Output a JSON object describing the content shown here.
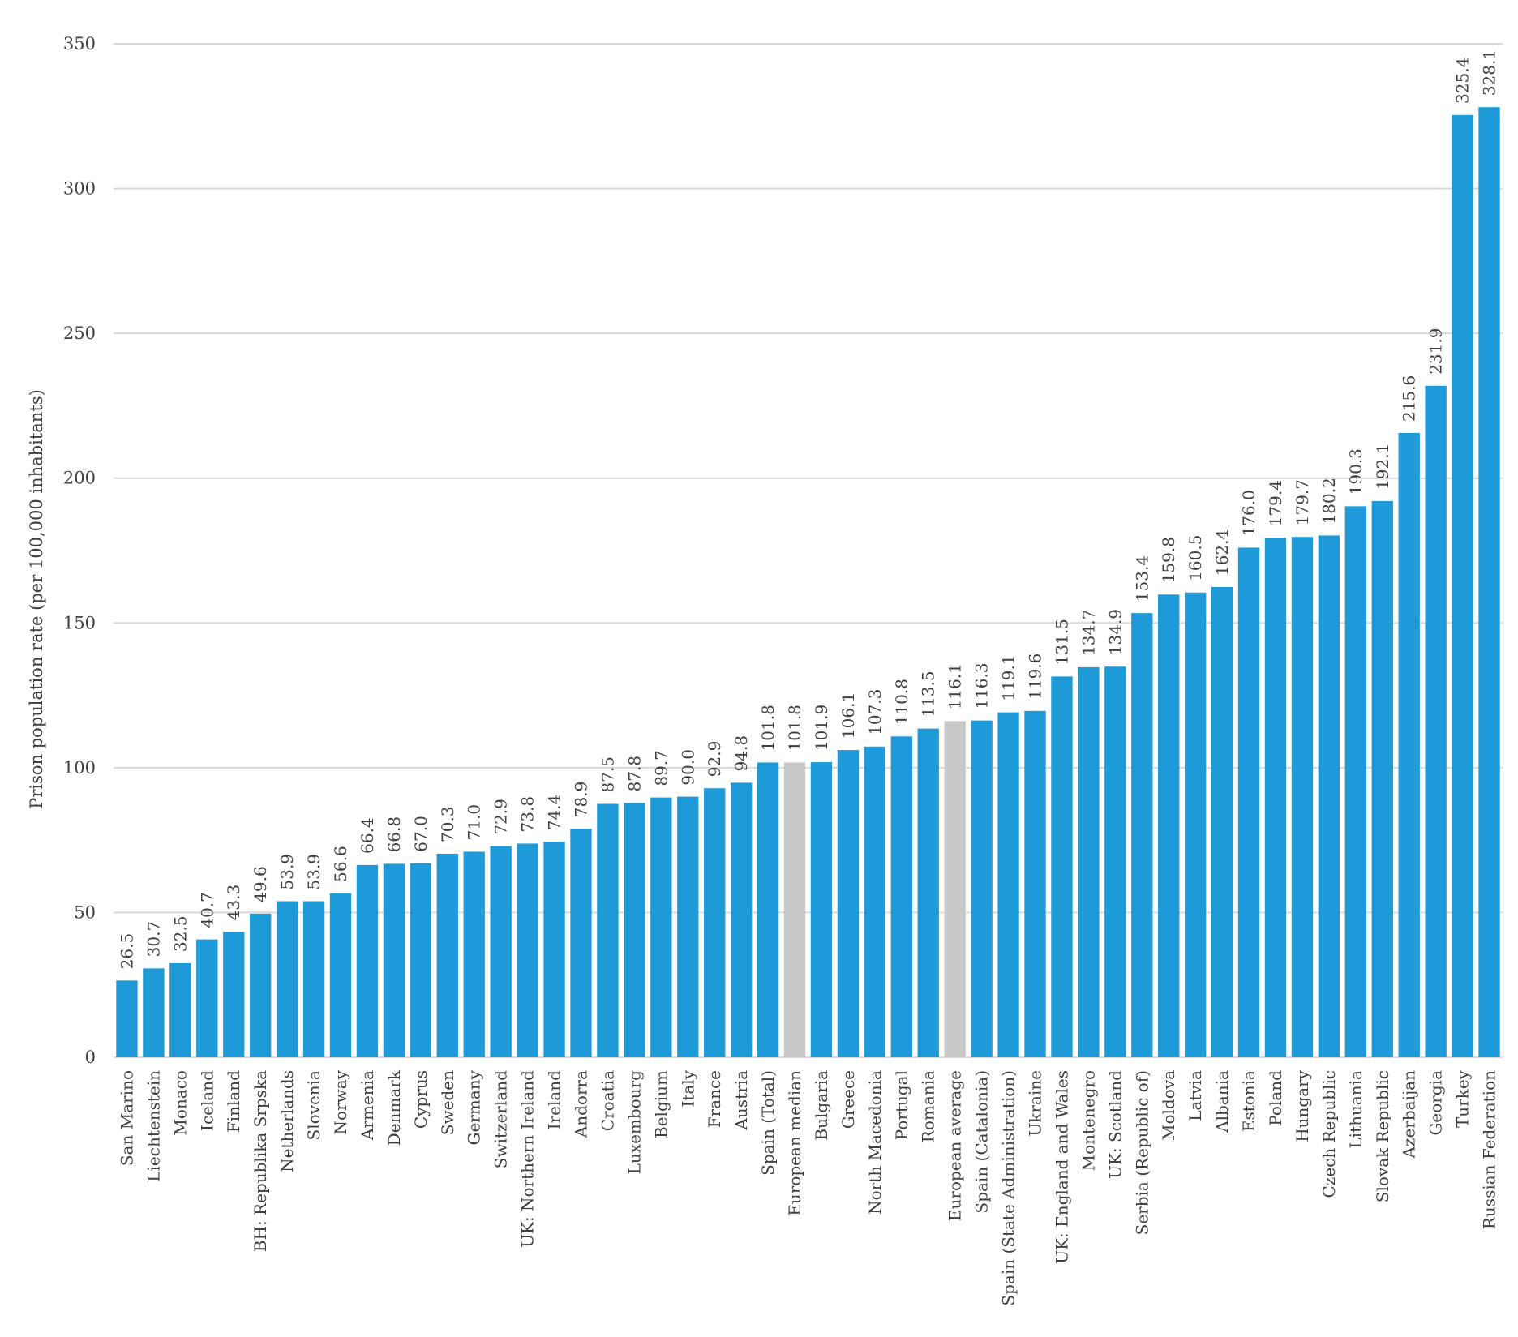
{
  "chart_data": {
    "type": "bar",
    "title": "",
    "xlabel": "",
    "ylabel": "Prison population rate (per 100,000 inhabitants)",
    "ylim": [
      0,
      350
    ],
    "yticks": [
      0,
      50,
      100,
      150,
      200,
      250,
      300,
      350
    ],
    "grid": true,
    "legend": "none",
    "colors": {
      "bar": "#1f9ad9",
      "highlight": "#c8c8c8",
      "grid": "#d9d9d9"
    },
    "categories": [
      "San Marino",
      "Liechtenstein",
      "Monaco",
      "Iceland",
      "Finland",
      "BH: Republika Srpska",
      "Netherlands",
      "Slovenia",
      "Norway",
      "Armenia",
      "Denmark",
      "Cyprus",
      "Sweden",
      "Germany",
      "Switzerland",
      "UK: Northern Ireland",
      "Ireland",
      "Andorra",
      "Croatia",
      "Luxembourg",
      "Belgium",
      "Italy",
      "France",
      "Austria",
      "Spain (Total)",
      "European median",
      "Bulgaria",
      "Greece",
      "North Macedonia",
      "Portugal",
      "Romania",
      "European average",
      "Spain (Catalonia)",
      "Spain (State Administration)",
      "Ukraine",
      "UK: England and Wales",
      "Montenegro",
      "UK: Scotland",
      "Serbia (Republic of)",
      "Moldova",
      "Latvia",
      "Albania",
      "Estonia",
      "Poland",
      "Hungary",
      "Czech Republic",
      "Lithuania",
      "Slovak Republic",
      "Azerbaijan",
      "Georgia",
      "Turkey",
      "Russian Federation"
    ],
    "values": [
      26.5,
      30.7,
      32.5,
      40.7,
      43.3,
      49.6,
      53.9,
      53.9,
      56.6,
      66.4,
      66.8,
      67.0,
      70.3,
      71.0,
      72.9,
      73.8,
      74.4,
      78.9,
      87.5,
      87.8,
      89.7,
      90.0,
      92.9,
      94.8,
      101.8,
      101.8,
      101.9,
      106.1,
      107.3,
      110.8,
      113.5,
      116.1,
      116.3,
      119.1,
      119.6,
      131.5,
      134.7,
      134.9,
      153.4,
      159.8,
      160.5,
      162.4,
      176.0,
      179.4,
      179.7,
      180.2,
      190.3,
      192.1,
      215.6,
      231.9,
      325.4,
      328.1
    ],
    "data_labels": [
      "26.5",
      "30.7",
      "32.5",
      "40.7",
      "43.3",
      "49.6",
      "53.9",
      "53.9",
      "56.6",
      "66.4",
      "66.8",
      "67.0",
      "70.3",
      "71.0",
      "72.9",
      "73.8",
      "74.4",
      "78.9",
      "87.5",
      "87.8",
      "89.7",
      "90.0",
      "92.9",
      "94.8",
      "101.8",
      "101.8",
      "101.9",
      "106.1",
      "107.3",
      "110.8",
      "113.5",
      "116.1",
      "116.3",
      "119.1",
      "119.6",
      "131.5",
      "134.7",
      "134.9",
      "153.4",
      "159.8",
      "160.5",
      "162.4",
      "176.0",
      "179.4",
      "179.7",
      "180.2",
      "190.3",
      "192.1",
      "215.6",
      "231.9",
      "325.4",
      "328.1"
    ],
    "highlighted": [
      "European median",
      "European average"
    ]
  }
}
